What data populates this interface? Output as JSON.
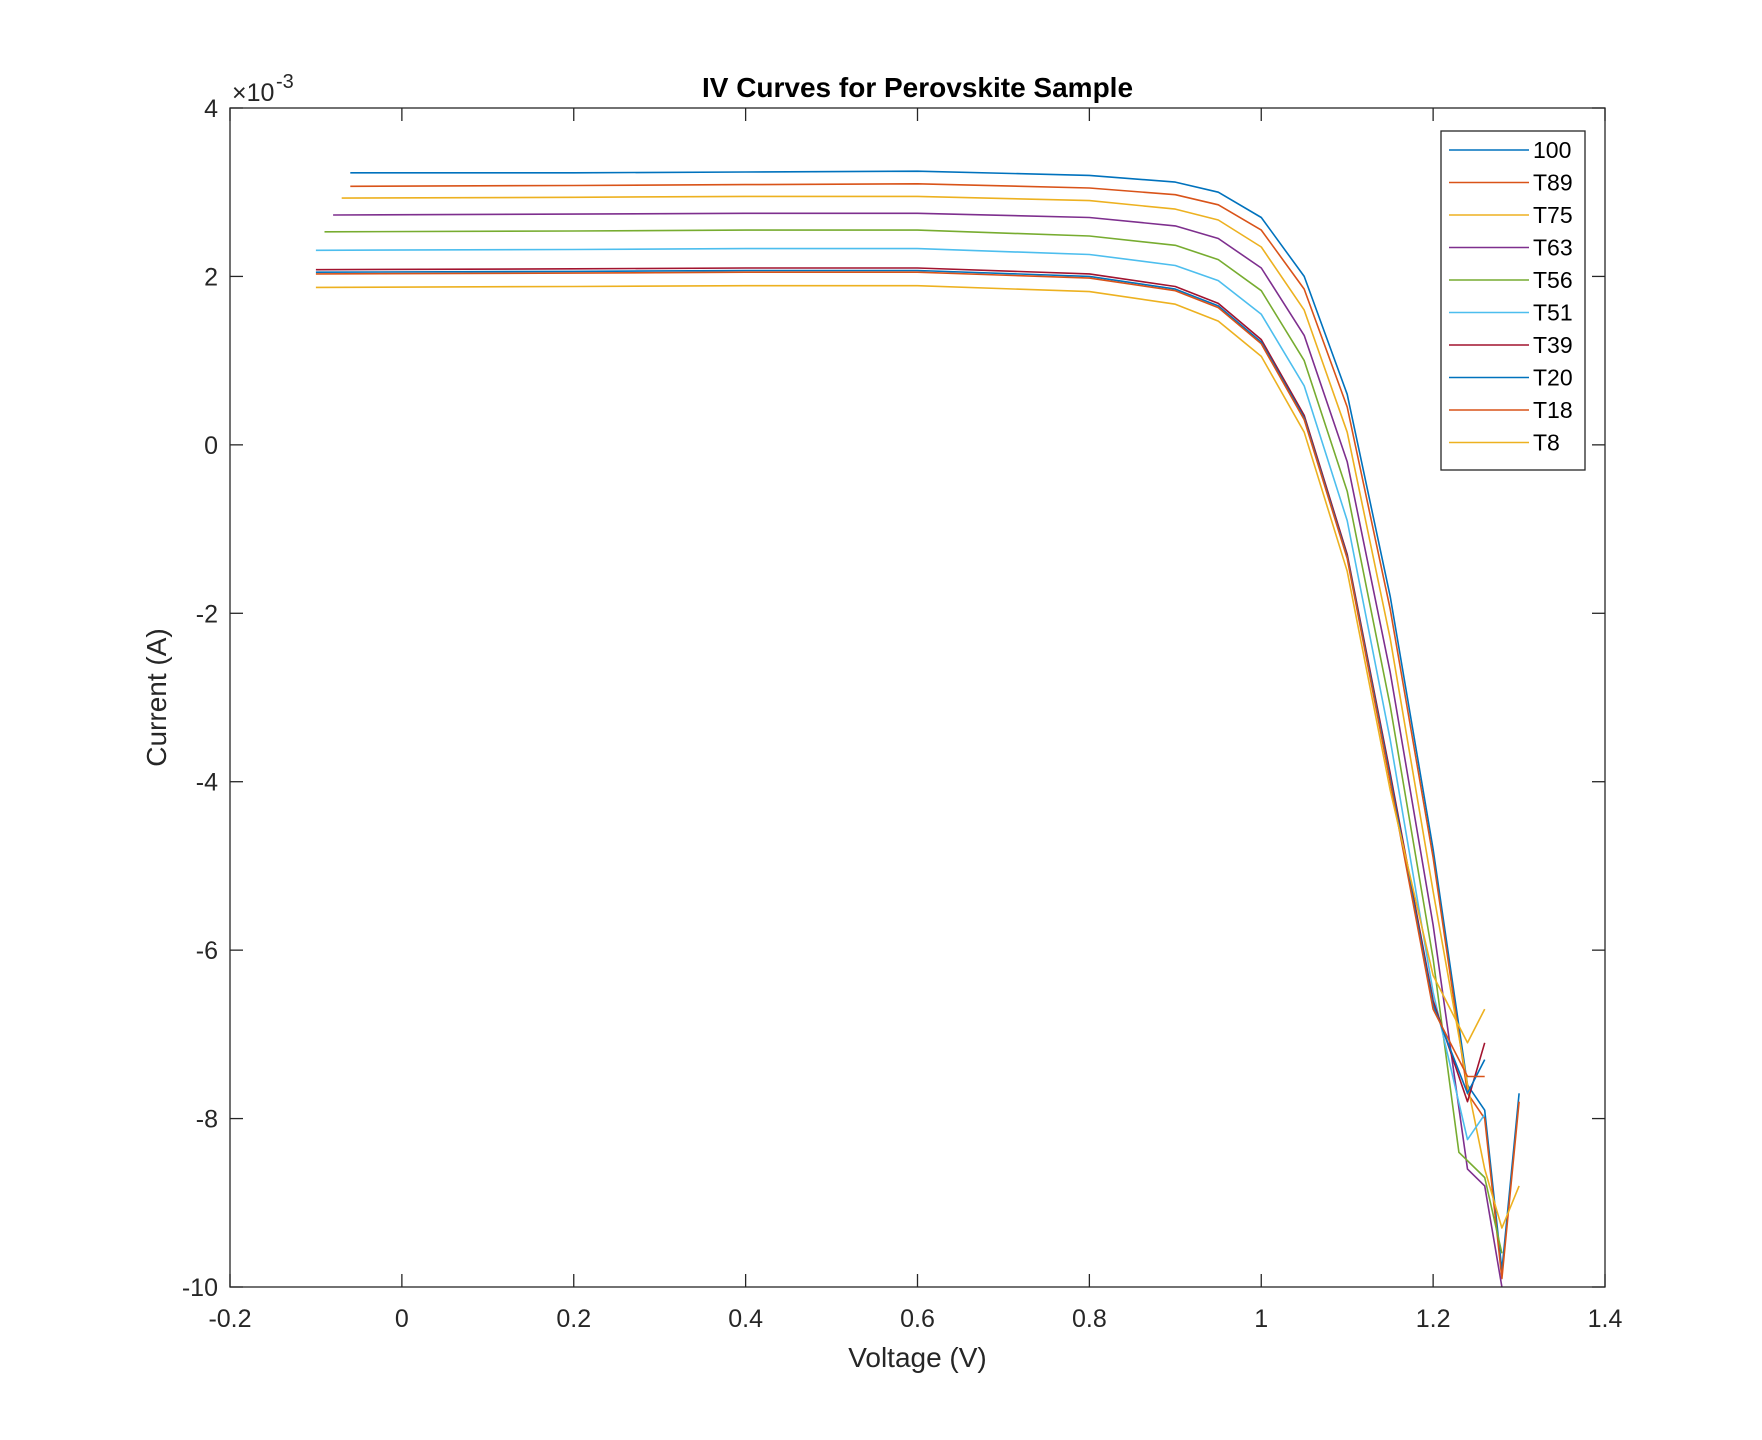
{
  "chart_data": {
    "type": "line",
    "title": "IV Curves for Perovskite Sample",
    "xlabel": "Voltage (V)",
    "ylabel": "Current (A)",
    "y_exponent_base": "×10",
    "y_exponent_power": "-3",
    "xlim": [
      -0.2,
      1.4
    ],
    "ylim": [
      -10,
      4
    ],
    "xticks": [
      -0.2,
      0,
      0.2,
      0.4,
      0.6,
      0.8,
      1,
      1.2,
      1.4
    ],
    "xtick_labels": [
      "-0.2",
      "0",
      "0.2",
      "0.4",
      "0.6",
      "0.8",
      "1",
      "1.2",
      "1.4"
    ],
    "yticks": [
      -10,
      -8,
      -6,
      -4,
      -2,
      0,
      2,
      4
    ],
    "ytick_labels": [
      "-10",
      "-8",
      "-6",
      "-4",
      "-2",
      "0",
      "2",
      "4"
    ],
    "grid": false,
    "legend_position": "top-right",
    "series": [
      {
        "name": "100",
        "color": "#0072BD",
        "points": [
          [
            -0.06,
            3.23
          ],
          [
            0.2,
            3.23
          ],
          [
            0.4,
            3.24
          ],
          [
            0.6,
            3.25
          ],
          [
            0.8,
            3.2
          ],
          [
            0.9,
            3.12
          ],
          [
            0.95,
            3.0
          ],
          [
            1.0,
            2.7
          ],
          [
            1.05,
            2.0
          ],
          [
            1.1,
            0.6
          ],
          [
            1.15,
            -1.8
          ],
          [
            1.2,
            -4.8
          ],
          [
            1.24,
            -7.6
          ],
          [
            1.26,
            -7.9
          ],
          [
            1.28,
            -9.8
          ],
          [
            1.3,
            -7.7
          ]
        ]
      },
      {
        "name": "T89",
        "color": "#D95319",
        "points": [
          [
            -0.06,
            3.07
          ],
          [
            0.2,
            3.08
          ],
          [
            0.4,
            3.09
          ],
          [
            0.6,
            3.1
          ],
          [
            0.8,
            3.05
          ],
          [
            0.9,
            2.97
          ],
          [
            0.95,
            2.85
          ],
          [
            1.0,
            2.55
          ],
          [
            1.05,
            1.85
          ],
          [
            1.1,
            0.45
          ],
          [
            1.15,
            -1.95
          ],
          [
            1.2,
            -4.9
          ],
          [
            1.24,
            -7.7
          ],
          [
            1.26,
            -8.0
          ],
          [
            1.28,
            -9.9
          ],
          [
            1.3,
            -7.8
          ]
        ]
      },
      {
        "name": "T75",
        "color": "#EDB120",
        "points": [
          [
            -0.07,
            2.93
          ],
          [
            0.2,
            2.94
          ],
          [
            0.4,
            2.95
          ],
          [
            0.6,
            2.95
          ],
          [
            0.8,
            2.9
          ],
          [
            0.9,
            2.8
          ],
          [
            0.95,
            2.67
          ],
          [
            1.0,
            2.35
          ],
          [
            1.05,
            1.6
          ],
          [
            1.1,
            0.15
          ],
          [
            1.15,
            -2.3
          ],
          [
            1.2,
            -5.3
          ],
          [
            1.24,
            -7.6
          ],
          [
            1.26,
            -8.6
          ],
          [
            1.28,
            -9.3
          ],
          [
            1.3,
            -8.8
          ]
        ]
      },
      {
        "name": "T63",
        "color": "#7E2F8E",
        "points": [
          [
            -0.08,
            2.73
          ],
          [
            0.2,
            2.74
          ],
          [
            0.4,
            2.75
          ],
          [
            0.6,
            2.75
          ],
          [
            0.8,
            2.7
          ],
          [
            0.9,
            2.6
          ],
          [
            0.95,
            2.45
          ],
          [
            1.0,
            2.1
          ],
          [
            1.05,
            1.3
          ],
          [
            1.1,
            -0.2
          ],
          [
            1.15,
            -2.7
          ],
          [
            1.2,
            -5.7
          ],
          [
            1.24,
            -8.6
          ],
          [
            1.26,
            -8.8
          ],
          [
            1.28,
            -10.0
          ]
        ]
      },
      {
        "name": "T56",
        "color": "#77AC30",
        "points": [
          [
            -0.09,
            2.53
          ],
          [
            0.2,
            2.54
          ],
          [
            0.4,
            2.55
          ],
          [
            0.6,
            2.55
          ],
          [
            0.8,
            2.48
          ],
          [
            0.9,
            2.37
          ],
          [
            0.95,
            2.2
          ],
          [
            1.0,
            1.83
          ],
          [
            1.05,
            1.0
          ],
          [
            1.1,
            -0.55
          ],
          [
            1.15,
            -3.1
          ],
          [
            1.2,
            -6.1
          ],
          [
            1.23,
            -8.4
          ],
          [
            1.26,
            -8.7
          ],
          [
            1.28,
            -9.6
          ]
        ]
      },
      {
        "name": "T51",
        "color": "#4DBEEE",
        "points": [
          [
            -0.1,
            2.31
          ],
          [
            0.2,
            2.32
          ],
          [
            0.4,
            2.33
          ],
          [
            0.6,
            2.33
          ],
          [
            0.8,
            2.26
          ],
          [
            0.9,
            2.13
          ],
          [
            0.95,
            1.95
          ],
          [
            1.0,
            1.55
          ],
          [
            1.05,
            0.7
          ],
          [
            1.1,
            -0.9
          ],
          [
            1.15,
            -3.5
          ],
          [
            1.2,
            -6.5
          ],
          [
            1.24,
            -8.25
          ],
          [
            1.26,
            -7.95
          ]
        ]
      },
      {
        "name": "T39",
        "color": "#A2142F",
        "points": [
          [
            -0.1,
            2.08
          ],
          [
            0.2,
            2.09
          ],
          [
            0.4,
            2.1
          ],
          [
            0.6,
            2.1
          ],
          [
            0.8,
            2.03
          ],
          [
            0.9,
            1.88
          ],
          [
            0.95,
            1.68
          ],
          [
            1.0,
            1.25
          ],
          [
            1.05,
            0.35
          ],
          [
            1.1,
            -1.3
          ],
          [
            1.15,
            -3.9
          ],
          [
            1.2,
            -6.6
          ],
          [
            1.24,
            -7.8
          ],
          [
            1.26,
            -7.1
          ]
        ]
      },
      {
        "name": "T20",
        "color": "#0072BD",
        "points": [
          [
            -0.1,
            2.05
          ],
          [
            0.2,
            2.06
          ],
          [
            0.4,
            2.07
          ],
          [
            0.6,
            2.07
          ],
          [
            0.8,
            2.0
          ],
          [
            0.9,
            1.85
          ],
          [
            0.95,
            1.65
          ],
          [
            1.0,
            1.22
          ],
          [
            1.05,
            0.32
          ],
          [
            1.1,
            -1.33
          ],
          [
            1.15,
            -3.95
          ],
          [
            1.2,
            -6.65
          ],
          [
            1.24,
            -7.7
          ],
          [
            1.26,
            -7.3
          ]
        ]
      },
      {
        "name": "T18",
        "color": "#D95319",
        "points": [
          [
            -0.1,
            2.03
          ],
          [
            0.2,
            2.04
          ],
          [
            0.4,
            2.05
          ],
          [
            0.6,
            2.05
          ],
          [
            0.8,
            1.98
          ],
          [
            0.9,
            1.83
          ],
          [
            0.95,
            1.63
          ],
          [
            1.0,
            1.2
          ],
          [
            1.05,
            0.3
          ],
          [
            1.1,
            -1.35
          ],
          [
            1.15,
            -4.0
          ],
          [
            1.2,
            -6.7
          ],
          [
            1.24,
            -7.5
          ],
          [
            1.26,
            -7.5
          ]
        ]
      },
      {
        "name": "T8",
        "color": "#EDB120",
        "points": [
          [
            -0.1,
            1.87
          ],
          [
            0.2,
            1.88
          ],
          [
            0.4,
            1.89
          ],
          [
            0.6,
            1.89
          ],
          [
            0.8,
            1.82
          ],
          [
            0.9,
            1.67
          ],
          [
            0.95,
            1.47
          ],
          [
            1.0,
            1.05
          ],
          [
            1.05,
            0.15
          ],
          [
            1.1,
            -1.5
          ],
          [
            1.15,
            -4.1
          ],
          [
            1.2,
            -6.3
          ],
          [
            1.24,
            -7.1
          ],
          [
            1.26,
            -6.7
          ]
        ]
      }
    ]
  }
}
